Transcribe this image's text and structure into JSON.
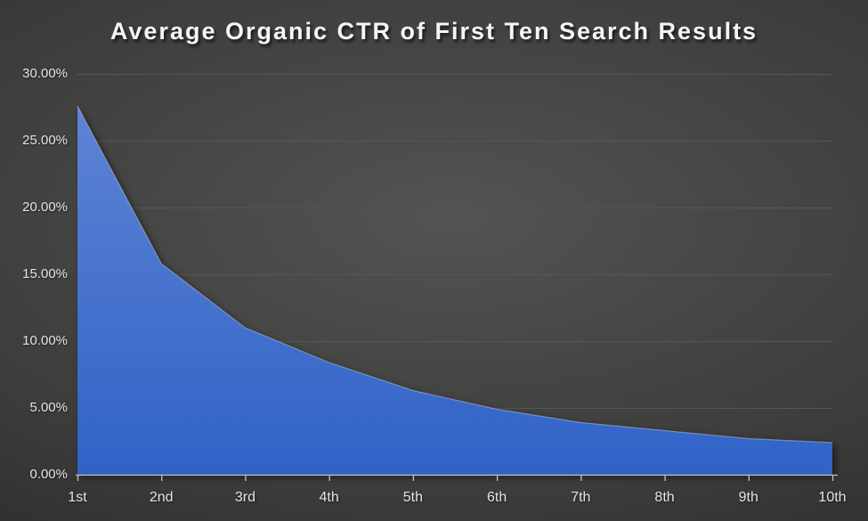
{
  "colors": {
    "bg_center": "#535351",
    "bg_mid": "#3b3b39",
    "bg_edge": "#1e1e1c",
    "area_fill_top": "#5d84d4",
    "area_fill_bottom": "#3062c7",
    "area_edge_highlight": "#b7c8e8",
    "gridline": "#565654",
    "axis_line": "#c3c3c3",
    "tick_label": "#e4e4e4",
    "title_text": "#f5f5f5"
  },
  "chart_data": {
    "type": "area",
    "title": "Average Organic CTR of First Ten Search Results",
    "xlabel": "",
    "ylabel": "",
    "categories": [
      "1st",
      "2nd",
      "3rd",
      "4th",
      "5th",
      "6th",
      "7th",
      "8th",
      "9th",
      "10th"
    ],
    "values": [
      27.6,
      15.8,
      11.0,
      8.4,
      6.3,
      4.9,
      3.9,
      3.3,
      2.7,
      2.4
    ],
    "series_name": "Average Organic CTR",
    "ylim": [
      0,
      30
    ],
    "y_tick_step": 5,
    "y_tick_labels": [
      "0.00%",
      "5.00%",
      "10.00%",
      "15.00%",
      "20.00%",
      "25.00%",
      "30.00%"
    ],
    "grid": true,
    "legend": false
  }
}
